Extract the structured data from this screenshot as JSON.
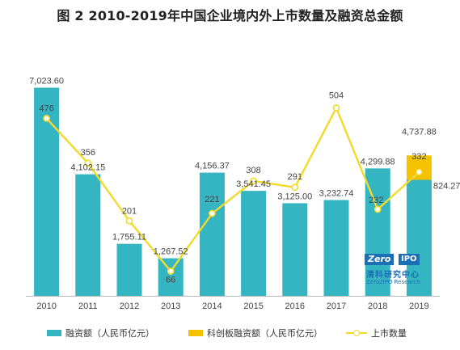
{
  "title": "图 2 2010-2019年中国企业境内外上市数量及融资总金额",
  "colors": {
    "financing": "#35b4c2",
    "star_market": "#f5c200",
    "line": "#f2d92a",
    "axis": "#bbbbbb"
  },
  "logo": {
    "zero": "Zero",
    "ipo": "IPO",
    "cn": "清科研究中心",
    "en": "Zero2IPO Research"
  },
  "chart_data": {
    "type": "bar",
    "title": "图 2 2010-2019年中国企业境内外上市数量及融资总金额",
    "categories": [
      "2010",
      "2011",
      "2012",
      "2013",
      "2014",
      "2015",
      "2016",
      "2017",
      "2018",
      "2019"
    ],
    "series": [
      {
        "name": "融资额（人民币亿元）",
        "kind": "bar",
        "values": [
          7023.6,
          4102.15,
          1755.11,
          1267.52,
          4156.37,
          3541.45,
          3125.0,
          3232.74,
          4299.88,
          3913.61
        ],
        "labels": [
          "7,023.60",
          "4,102.15",
          "1,755.11",
          "1,267.52",
          "4,156.37",
          "3,541.45",
          "3,125.00",
          "3,232.74",
          "4,299.88",
          ""
        ]
      },
      {
        "name": "科创板融资额（人民币亿元）",
        "kind": "bar-stacked",
        "values": [
          0,
          0,
          0,
          0,
          0,
          0,
          0,
          0,
          0,
          824.27
        ],
        "labels": [
          "",
          "",
          "",
          "",
          "",
          "",
          "",
          "",
          "",
          "824.27"
        ]
      },
      {
        "name": "上市数量",
        "kind": "line",
        "axis": "secondary",
        "values": [
          476,
          356,
          201,
          66,
          221,
          308,
          291,
          504,
          232,
          332
        ],
        "labels": [
          "476",
          "356",
          "201",
          "66",
          "221",
          "308",
          "291",
          "504",
          "232",
          "332"
        ]
      }
    ],
    "totals": [
      "",
      "",
      "",
      "",
      "",
      "",
      "",
      "",
      "",
      "4,737.88"
    ],
    "ylim": [
      0,
      7800
    ],
    "y2lim": [
      0,
      620
    ],
    "grid": false,
    "legend": "bottom"
  }
}
